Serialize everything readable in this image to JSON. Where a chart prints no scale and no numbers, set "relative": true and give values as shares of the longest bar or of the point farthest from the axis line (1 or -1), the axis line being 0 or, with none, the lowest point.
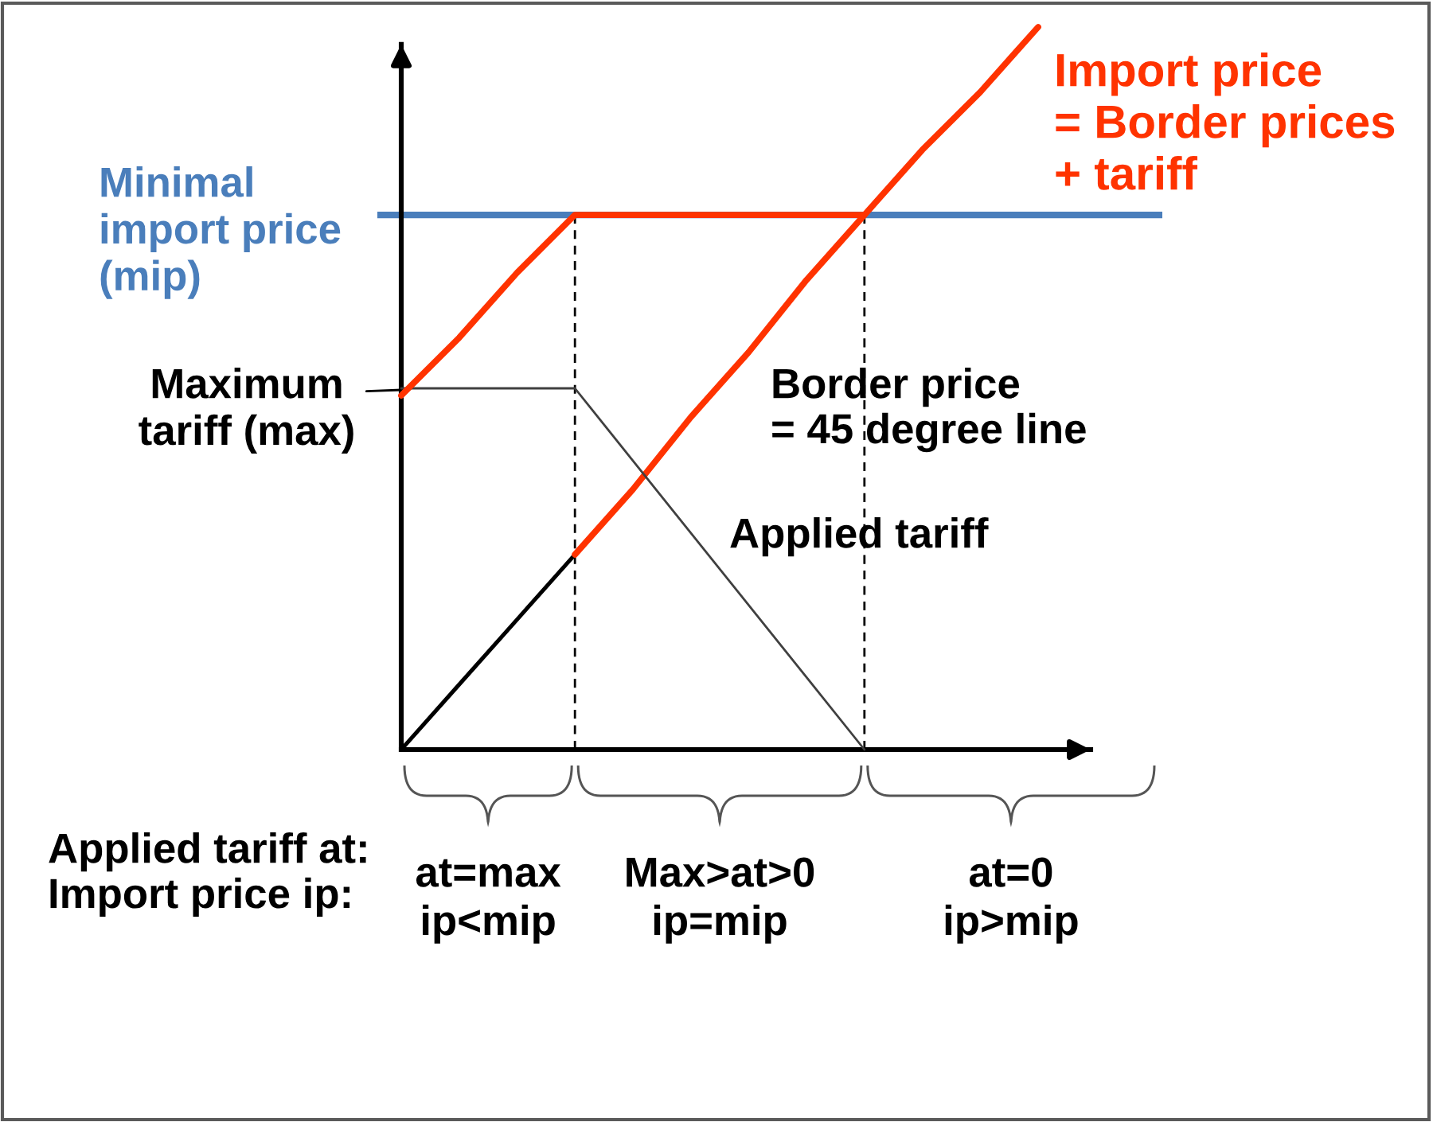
{
  "chart_data": {
    "type": "line",
    "relative": true,
    "categories": [
      null,
      null,
      null,
      null,
      null,
      null,
      null,
      null,
      null,
      null,
      null,
      null
    ],
    "series": [
      {
        "color": "#000000",
        "values": [
          0,
          0.09,
          0.18,
          0.27,
          null,
          null,
          null,
          null,
          null,
          null,
          null,
          null
        ]
      },
      {
        "color": "#ff3300",
        "values": [
          null,
          null,
          null,
          0.27,
          0.36,
          0.46,
          0.55,
          0.65,
          0.74,
          null,
          null,
          null
        ]
      },
      {
        "color": "#404040",
        "values": [
          0.5,
          0.5,
          0.5,
          0.5,
          0.4,
          0.3,
          0.2,
          0.1,
          0,
          null,
          null,
          null
        ]
      },
      {
        "name": "Import price\n= Border prices\n+ tariff",
        "color": "#ff3300",
        "values": [
          0.49,
          0.57,
          0.66,
          0.74,
          0.74,
          0.74,
          0.74,
          0.74,
          0.74,
          0.83,
          0.91,
          1.0
        ]
      }
    ],
    "ref_lines": [
      {
        "axis": "y",
        "value": 0.74,
        "label": "Minimal\nimport price\n(mip)",
        "color": "#4a7ebb"
      }
    ],
    "annotations": [
      "Maximum\ntariff (max)",
      "Border price\n= 45 degree line",
      "Applied tariff",
      "Applied tariff at:\nImport price ip:",
      "at=max\nip<mip",
      "Max>at>0\nip=mip",
      "at=0\nip>mip"
    ]
  }
}
